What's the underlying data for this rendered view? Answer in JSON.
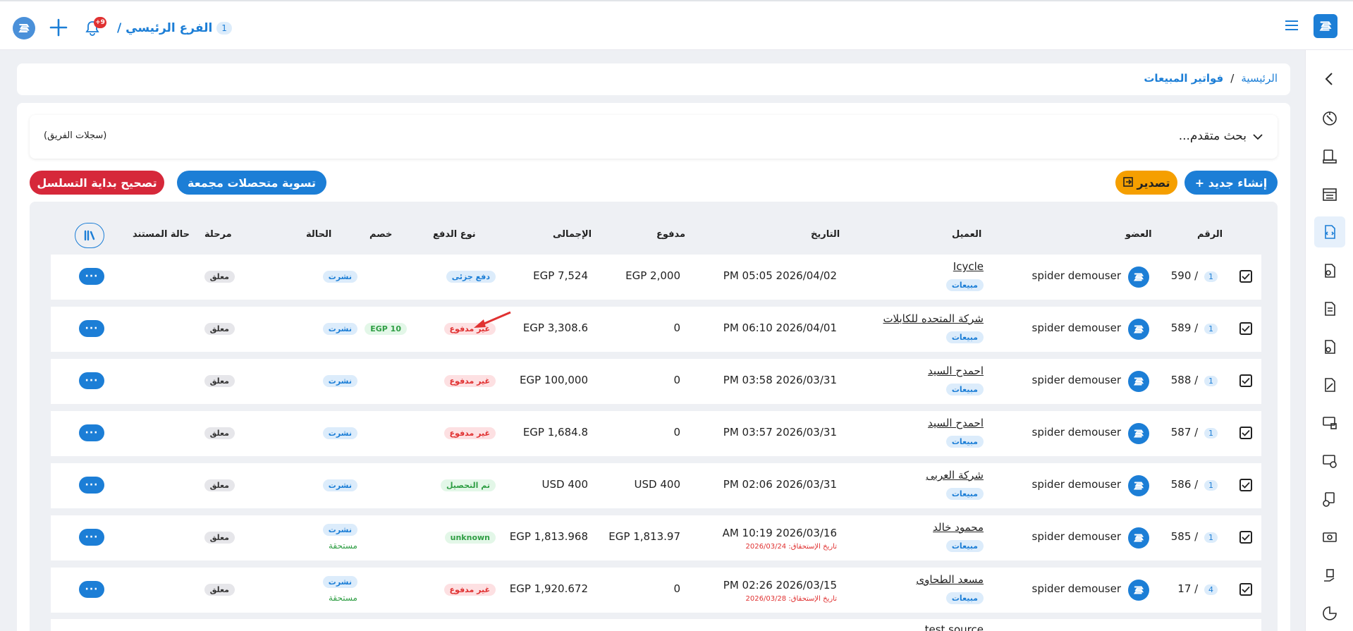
{
  "topbar": {
    "branch_label": "الفرع الرئيسي /",
    "branch_num": "1",
    "notif_count": "+9"
  },
  "breadcrumb": {
    "home": "الرئيسية",
    "sep": "/",
    "current": "فواتير المبيعات"
  },
  "search": {
    "advanced": "بحث متقدم...",
    "team_records": "(سجلات الفريق)"
  },
  "actions": {
    "create": "+ إنشاء جديد",
    "export": "تصدير",
    "settle": "تسوية متحصلات مجمعة",
    "fix_sequence": "تصحيح بداية التسلسل"
  },
  "colors": {
    "primary": "#1c7ed6",
    "export": "#f59f00",
    "danger": "#e03131",
    "success": "#2f9e44"
  },
  "table": {
    "headers": {
      "number": "الرقم",
      "member": "العضو",
      "client": "العميل",
      "date": "التاريخ",
      "paid": "مدفوع",
      "total": "الإجمالى",
      "payment_type": "نوع الدفع",
      "discount": "خصم",
      "status": "الحالة",
      "stage": "مرحلة",
      "doc_status": "حالة المستند"
    },
    "rows": [
      {
        "num": "590 /",
        "branch": "1",
        "member": "spider demouser",
        "client": "Icycle",
        "client_tag": "مبيعات",
        "date": "PM 05:05 2026/04/02",
        "due": "",
        "paid": "EGP 2,000",
        "total": "EGP 7,524",
        "payment": "دفع جزئى",
        "payment_kind": "blue",
        "discount": "",
        "status": "نشرت",
        "status2": "",
        "doc": "معلق"
      },
      {
        "num": "589 /",
        "branch": "1",
        "member": "spider demouser",
        "client": "شركة المتحده للكابلات",
        "client_tag": "مبيعات",
        "date": "PM 06:10 2026/04/01",
        "due": "",
        "paid": "0",
        "total": "EGP 3,308.6",
        "payment": "غير مدفوع",
        "payment_kind": "red",
        "discount": "EGP 10",
        "status": "نشرت",
        "status2": "",
        "doc": "معلق"
      },
      {
        "num": "588 /",
        "branch": "1",
        "member": "spider demouser",
        "client": "احمدح السيد",
        "client_tag": "مبيعات",
        "date": "PM 03:58 2026/03/31",
        "due": "",
        "paid": "0",
        "total": "EGP 100,000",
        "payment": "غير مدفوع",
        "payment_kind": "red",
        "discount": "",
        "status": "نشرت",
        "status2": "",
        "doc": "معلق"
      },
      {
        "num": "587 /",
        "branch": "1",
        "member": "spider demouser",
        "client": "احمدح السيد",
        "client_tag": "مبيعات",
        "date": "PM 03:57 2026/03/31",
        "due": "",
        "paid": "0",
        "total": "EGP 1,684.8",
        "payment": "غير مدفوع",
        "payment_kind": "red",
        "discount": "",
        "status": "نشرت",
        "status2": "",
        "doc": "معلق"
      },
      {
        "num": "586 /",
        "branch": "1",
        "member": "spider demouser",
        "client": "شركة العربى",
        "client_tag": "مبيعات",
        "date": "PM 02:06 2026/03/31",
        "due": "",
        "paid": "USD 400",
        "total": "USD 400",
        "payment": "تم التحصيل",
        "payment_kind": "green",
        "discount": "",
        "status": "نشرت",
        "status2": "",
        "doc": "معلق"
      },
      {
        "num": "585 /",
        "branch": "1",
        "member": "spider demouser",
        "client": "محمود خالد",
        "client_tag": "مبيعات",
        "date": "AM 10:19 2026/03/16",
        "due": "تاريخ الإستحقاق: 2026/03/24",
        "paid": "EGP 1,813.97",
        "total": "EGP 1,813.968",
        "payment": "unknown",
        "payment_kind": "green",
        "discount": "",
        "status": "نشرت",
        "status2": "مستحقة",
        "doc": "معلق"
      },
      {
        "num": "17 /",
        "branch": "4",
        "member": "spider demouser",
        "client": "مسعد الطحاوى",
        "client_tag": "مبيعات",
        "date": "PM 02:26 2026/03/15",
        "due": "تاريخ الإستحقاق: 2026/03/28",
        "paid": "0",
        "total": "EGP 1,920.672",
        "payment": "غير مدفوع",
        "payment_kind": "red",
        "discount": "",
        "status": "نشرت",
        "status2": "مستحقة",
        "doc": "معلق"
      }
    ],
    "partial_row_client": "test source",
    "more_label": "···"
  }
}
